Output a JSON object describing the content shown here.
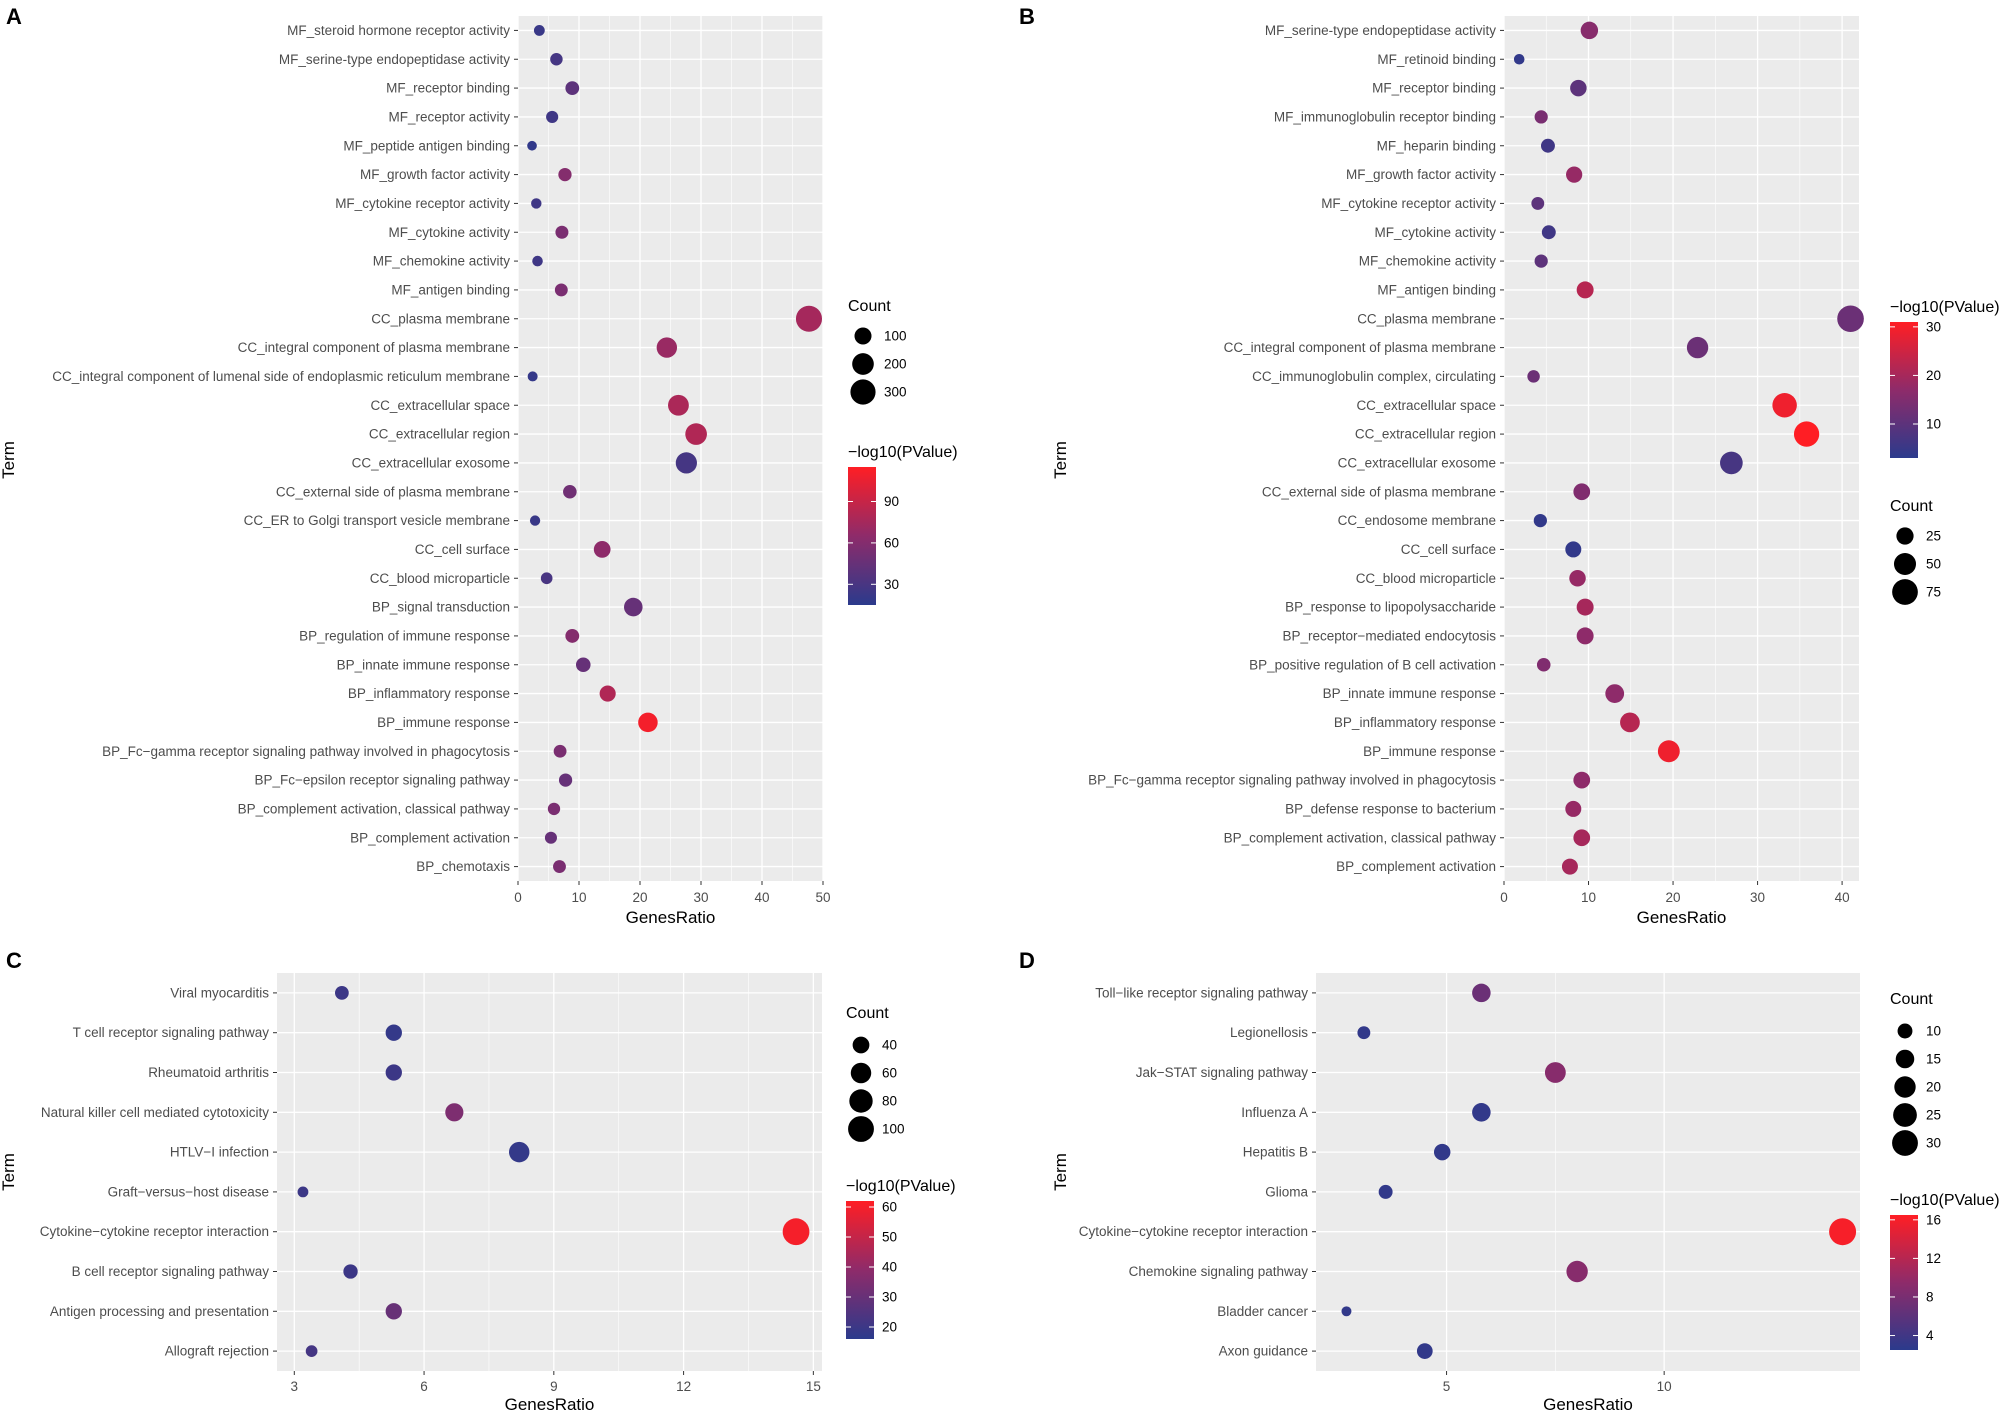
{
  "colors": {
    "low": "#2b3a8c",
    "high": "#ff1e24",
    "panel": "#ebebeb",
    "grid": "#ffffff"
  },
  "chart_data": [
    {
      "id": "A",
      "type": "scatter",
      "panel_label": "A",
      "xlabel": "GenesRatio",
      "ylabel": "Term",
      "xlim": [
        0,
        50
      ],
      "xticks": [
        0,
        10,
        20,
        30,
        40,
        50
      ],
      "tick_labels": [
        "0",
        "10",
        "20",
        "30",
        "40",
        "50"
      ],
      "size_legend": {
        "title": "Count",
        "values": [
          100,
          200,
          300
        ],
        "labels": [
          "100",
          "200",
          "300"
        ]
      },
      "color_legend": {
        "title": "−log10(PValue)",
        "range": [
          15,
          115
        ],
        "ticks": [
          30,
          60,
          90
        ],
        "labels": [
          "30",
          "60",
          "90"
        ]
      },
      "size_range": [
        1,
        360
      ],
      "terms": [
        "MF_steroid hormone receptor activity",
        "MF_serine-type endopeptidase activity",
        "MF_receptor binding",
        "MF_receptor activity",
        "MF_peptide antigen binding",
        "MF_growth factor activity",
        "MF_cytokine receptor activity",
        "MF_cytokine activity",
        "MF_chemokine activity",
        "MF_antigen binding",
        "CC_plasma membrane",
        "CC_integral component of plasma membrane",
        "CC_integral component of lumenal side of endoplasmic reticulum membrane",
        "CC_extracellular space",
        "CC_extracellular region",
        "CC_extracellular exosome",
        "CC_external side of plasma membrane",
        "CC_ER to Golgi transport vesicle membrane",
        "CC_cell surface",
        "CC_blood microparticle",
        "BP_signal transduction",
        "BP_regulation of immune response",
        "BP_innate immune response",
        "BP_inflammatory response",
        "BP_immune response",
        "BP_Fc−gamma receptor signaling pathway involved in phagocytosis",
        "BP_Fc−epsilon receptor signaling pathway",
        "BP_complement activation, classical pathway",
        "BP_complement activation",
        "BP_chemotaxis"
      ],
      "x": [
        3.5,
        6.3,
        8.9,
        5.6,
        2.3,
        7.7,
        3.0,
        7.2,
        3.2,
        7.1,
        47.7,
        24.4,
        2.4,
        26.3,
        29.2,
        27.6,
        8.5,
        2.8,
        13.8,
        4.7,
        18.9,
        8.9,
        10.7,
        14.7,
        21.3,
        6.9,
        7.8,
        5.9,
        5.4,
        6.8
      ],
      "count": [
        20,
        35,
        50,
        32,
        12,
        44,
        17,
        41,
        18,
        40,
        330,
        170,
        14,
        180,
        200,
        190,
        48,
        16,
        95,
        27,
        130,
        51,
        61,
        84,
        150,
        39,
        44,
        34,
        31,
        39
      ],
      "pvalue": [
        22,
        28,
        40,
        25,
        18,
        60,
        25,
        55,
        25,
        55,
        75,
        70,
        20,
        78,
        80,
        28,
        50,
        22,
        65,
        30,
        45,
        60,
        45,
        80,
        110,
        55,
        45,
        55,
        45,
        55
      ]
    },
    {
      "id": "B",
      "type": "scatter",
      "panel_label": "B",
      "xlabel": "GenesRatio",
      "ylabel": "Term",
      "xlim": [
        0,
        42
      ],
      "xticks": [
        0,
        10,
        20,
        30,
        40
      ],
      "tick_labels": [
        "0",
        "10",
        "20",
        "30",
        "40"
      ],
      "size_legend": {
        "title": "Count",
        "values": [
          25,
          50,
          75
        ],
        "labels": [
          "25",
          "50",
          "75"
        ]
      },
      "color_legend": {
        "title": "−log10(PValue)",
        "range": [
          3,
          31
        ],
        "ticks": [
          10,
          20,
          30
        ],
        "labels": [
          "10",
          "20",
          "30"
        ]
      },
      "size_range": [
        1,
        85
      ],
      "terms": [
        "MF_serine-type endopeptidase activity",
        "MF_retinoid binding",
        "MF_receptor binding",
        "MF_immunoglobulin receptor binding",
        "MF_heparin binding",
        "MF_growth factor activity",
        "MF_cytokine receptor activity",
        "MF_cytokine activity",
        "MF_chemokine activity",
        "MF_antigen binding",
        "CC_plasma membrane",
        "CC_integral component of plasma membrane",
        "CC_immunoglobulin complex, circulating",
        "CC_extracellular space",
        "CC_extracellular region",
        "CC_extracellular exosome",
        "CC_external side of plasma membrane",
        "CC_endosome membrane",
        "CC_cell surface",
        "CC_blood microparticle",
        "BP_response to lipopolysaccharide",
        "BP_receptor−mediated endocytosis",
        "BP_positive regulation of B cell activation",
        "BP_innate immune response",
        "BP_inflammatory response",
        "BP_immune response",
        "BP_Fc−gamma receptor signaling pathway involved in phagocytosis",
        "BP_defense response to bacterium",
        "BP_complement activation, classical pathway",
        "BP_complement activation"
      ],
      "x": [
        10.1,
        1.8,
        8.8,
        4.4,
        5.2,
        8.3,
        4.0,
        5.3,
        4.4,
        9.6,
        41.0,
        22.9,
        3.5,
        33.2,
        35.8,
        26.9,
        9.2,
        4.3,
        8.2,
        8.7,
        9.6,
        9.6,
        4.7,
        13.1,
        14.9,
        19.5,
        9.2,
        8.2,
        9.2,
        7.8
      ],
      "count": [
        26,
        5,
        22,
        11,
        13,
        21,
        10,
        13,
        11,
        24,
        82,
        46,
        9,
        66,
        72,
        54,
        23,
        11,
        20,
        22,
        24,
        24,
        12,
        32,
        37,
        49,
        23,
        20,
        23,
        20
      ],
      "pvalue": [
        16,
        4,
        10,
        14,
        6,
        18,
        10,
        6,
        10,
        22,
        12,
        12,
        12,
        29,
        31,
        7,
        15,
        4,
        4,
        18,
        20,
        17,
        15,
        17,
        22,
        29,
        17,
        18,
        20,
        20
      ]
    },
    {
      "id": "C",
      "type": "scatter",
      "panel_label": "C",
      "xlabel": "GenesRatio",
      "ylabel": "Term",
      "xlim": [
        2.6,
        15.2
      ],
      "xticks": [
        3,
        6,
        9,
        12,
        15
      ],
      "tick_labels": [
        "3",
        "6",
        "9",
        "12",
        "15"
      ],
      "size_legend": {
        "title": "Count",
        "values": [
          40,
          60,
          80,
          100
        ],
        "labels": [
          "40",
          "60",
          "80",
          "100"
        ]
      },
      "color_legend": {
        "title": "−log10(PValue)",
        "range": [
          16,
          62
        ],
        "ticks": [
          20,
          30,
          40,
          50,
          60
        ],
        "labels": [
          "20",
          "30",
          "40",
          "50",
          "60"
        ]
      },
      "size_range": [
        15,
        110
      ],
      "terms": [
        "Viral myocarditis",
        "T cell receptor signaling pathway",
        "Rheumatoid arthritis",
        "Natural killer cell mediated cytotoxicity",
        "HTLV−I infection",
        "Graft−versus−host disease",
        "Cytokine−cytokine receptor interaction",
        "B cell receptor signaling pathway",
        "Antigen processing and presentation",
        "Allograft rejection"
      ],
      "x": [
        4.1,
        5.3,
        5.3,
        6.7,
        8.2,
        3.2,
        14.6,
        4.3,
        5.3,
        3.4
      ],
      "count": [
        28,
        38,
        38,
        47,
        60,
        20,
        108,
        30,
        38,
        22
      ],
      "pvalue": [
        20,
        18,
        20,
        35,
        18,
        20,
        60,
        20,
        30,
        22
      ]
    },
    {
      "id": "D",
      "type": "scatter",
      "panel_label": "D",
      "xlabel": "GenesRatio",
      "ylabel": "Term",
      "xlim": [
        2.0,
        14.5
      ],
      "xticks": [
        5,
        10
      ],
      "tick_labels": [
        "5",
        "10"
      ],
      "size_legend": {
        "title": "Count",
        "values": [
          10,
          15,
          20,
          25,
          30
        ],
        "labels": [
          "10",
          "15",
          "20",
          "25",
          "30"
        ]
      },
      "color_legend": {
        "title": "−log10(PValue)",
        "range": [
          2.5,
          16.5
        ],
        "ticks": [
          4,
          8,
          12,
          16
        ],
        "labels": [
          "4",
          "8",
          "12",
          "16"
        ]
      },
      "size_range": [
        5,
        33
      ],
      "terms": [
        "Toll−like receptor signaling pathway",
        "Legionellosis",
        "Jak−STAT signaling pathway",
        "Influenza A",
        "Hepatitis B",
        "Glioma",
        "Cytokine−cytokine receptor interaction",
        "Chemokine signaling pathway",
        "Bladder cancer",
        "Axon guidance"
      ],
      "x": [
        5.8,
        3.1,
        7.5,
        5.8,
        4.9,
        3.6,
        14.1,
        8.0,
        2.7,
        4.5
      ],
      "count": [
        15,
        8,
        19,
        15,
        12,
        9,
        33,
        20,
        6,
        11
      ],
      "pvalue": [
        7,
        3,
        9,
        3,
        3,
        3,
        16,
        9,
        3,
        3
      ]
    }
  ]
}
